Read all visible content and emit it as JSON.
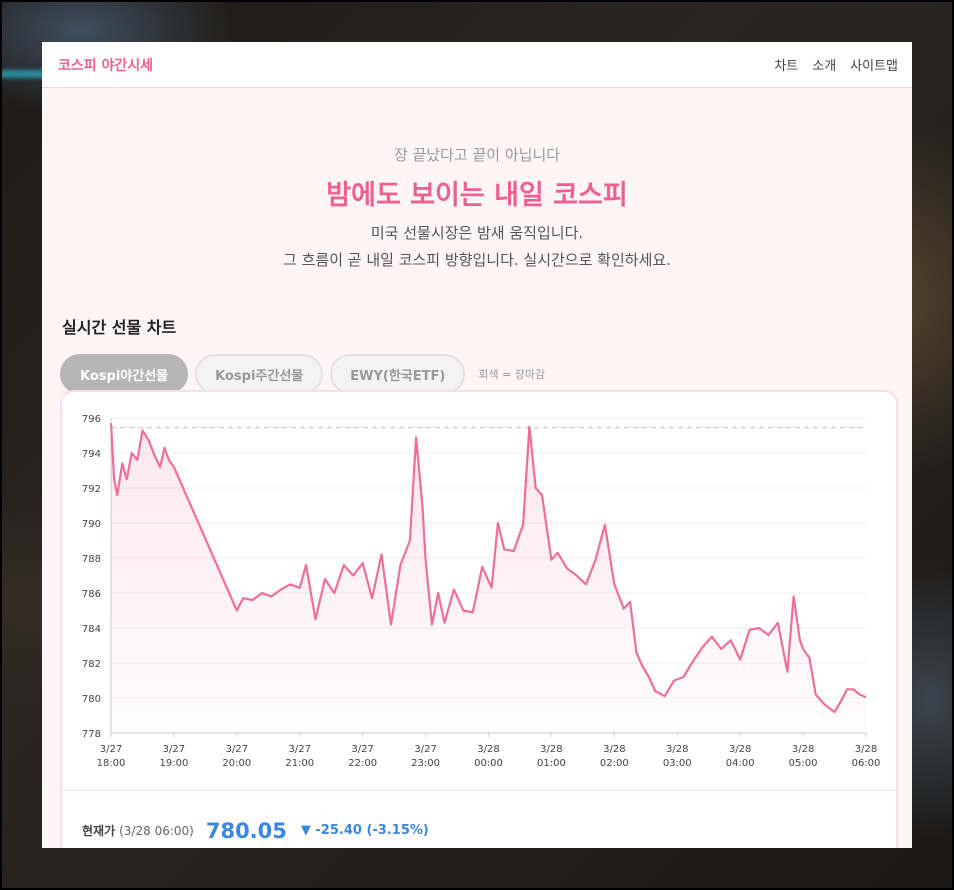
{
  "app": {
    "brand": "코스피 야간시세",
    "nav": [
      "차트",
      "소개",
      "사이트맵"
    ]
  },
  "hero": {
    "kicker": "장 끝났다고 끝이 아닙니다",
    "title": "밤에도 보이는 내일 코스피",
    "line1": "미국 선물시장은 밤새 움직입니다.",
    "line2": "그 흐름이 곧 내일 코스피 방향입니다. 실시간으로 확인하세요."
  },
  "section": {
    "title": "실시간 선물 차트",
    "tabs": [
      "Kospi야간선물",
      "Kospi주간선물",
      "EWY(한국ETF)"
    ],
    "active_tab": "Kospi야간선물",
    "note": "회색 = 장마감"
  },
  "colors": {
    "accent": "#ef5f8f",
    "line": "#f06e9a",
    "down": "#3b86e0",
    "reference_line": "#cfcfcf"
  },
  "chart_data": {
    "type": "line",
    "ylim": [
      778,
      796
    ],
    "yticks": [
      "796",
      "794",
      "792",
      "790",
      "788",
      "786",
      "784",
      "782",
      "780",
      "778"
    ],
    "xticks": [
      [
        "3/27",
        "18:00"
      ],
      [
        "3/27",
        "19:00"
      ],
      [
        "3/27",
        "20:00"
      ],
      [
        "3/27",
        "21:00"
      ],
      [
        "3/27",
        "22:00"
      ],
      [
        "3/27",
        "23:00"
      ],
      [
        "3/28",
        "00:00"
      ],
      [
        "3/28",
        "01:00"
      ],
      [
        "3/28",
        "02:00"
      ],
      [
        "3/28",
        "03:00"
      ],
      [
        "3/28",
        "04:00"
      ],
      [
        "3/28",
        "05:00"
      ],
      [
        "3/28",
        "06:00"
      ]
    ],
    "reference_value": 795.45,
    "series": [
      {
        "x": [
          0.0,
          0.05,
          0.1,
          0.18,
          0.25,
          0.33,
          0.42,
          0.5,
          0.6,
          0.7,
          0.78,
          0.85,
          0.92,
          1.0,
          2.0,
          2.1,
          2.25,
          2.4,
          2.55,
          2.7,
          2.85,
          3.0,
          3.1,
          3.25,
          3.4,
          3.55,
          3.7,
          3.85,
          4.0,
          4.15,
          4.3,
          4.45,
          4.6,
          4.75,
          4.85,
          4.95,
          5.0,
          5.1,
          5.2,
          5.3,
          5.45,
          5.6,
          5.75,
          5.9,
          6.05,
          6.15,
          6.25,
          6.4,
          6.55,
          6.65,
          6.75,
          6.85,
          7.0,
          7.1,
          7.25,
          7.4,
          7.55,
          7.7,
          7.85,
          8.0,
          8.15,
          8.25,
          8.35,
          8.45,
          8.55,
          8.65,
          8.8,
          8.95,
          9.1,
          9.25,
          9.4,
          9.55,
          9.7,
          9.85,
          10.0,
          10.15,
          10.3,
          10.45,
          10.6,
          10.75,
          10.85,
          10.95,
          11.0,
          11.1,
          11.2,
          11.35,
          11.5,
          11.6,
          11.7,
          11.8,
          11.9,
          12.0
        ],
        "y": [
          795.7,
          792.5,
          791.6,
          793.4,
          792.5,
          794.0,
          793.6,
          795.3,
          794.7,
          793.8,
          793.2,
          794.3,
          793.6,
          793.2,
          785.0,
          785.7,
          785.6,
          786.0,
          785.8,
          786.2,
          786.5,
          786.3,
          787.6,
          784.5,
          786.8,
          786.0,
          787.6,
          787.0,
          787.7,
          785.7,
          788.2,
          784.2,
          787.6,
          789.0,
          794.9,
          791.0,
          787.9,
          784.2,
          786.0,
          784.3,
          786.2,
          785.0,
          784.9,
          787.5,
          786.3,
          790.0,
          788.5,
          788.4,
          789.9,
          795.5,
          792.0,
          791.6,
          787.9,
          788.3,
          787.4,
          787.0,
          786.5,
          787.9,
          789.9,
          786.5,
          785.1,
          785.5,
          782.6,
          781.8,
          781.2,
          780.4,
          780.1,
          781.0,
          781.2,
          782.1,
          782.9,
          783.5,
          782.8,
          783.3,
          782.2,
          783.9,
          784.0,
          783.6,
          784.3,
          781.5,
          785.8,
          783.3,
          782.8,
          782.3,
          780.2,
          779.6,
          779.2,
          779.8,
          780.5,
          780.5,
          780.2,
          780.05
        ]
      }
    ],
    "current": {
      "label": "현재가",
      "time": "(3/28 06:00)",
      "value": "780.05",
      "change": "▼ -25.40 (-3.15%)"
    }
  }
}
